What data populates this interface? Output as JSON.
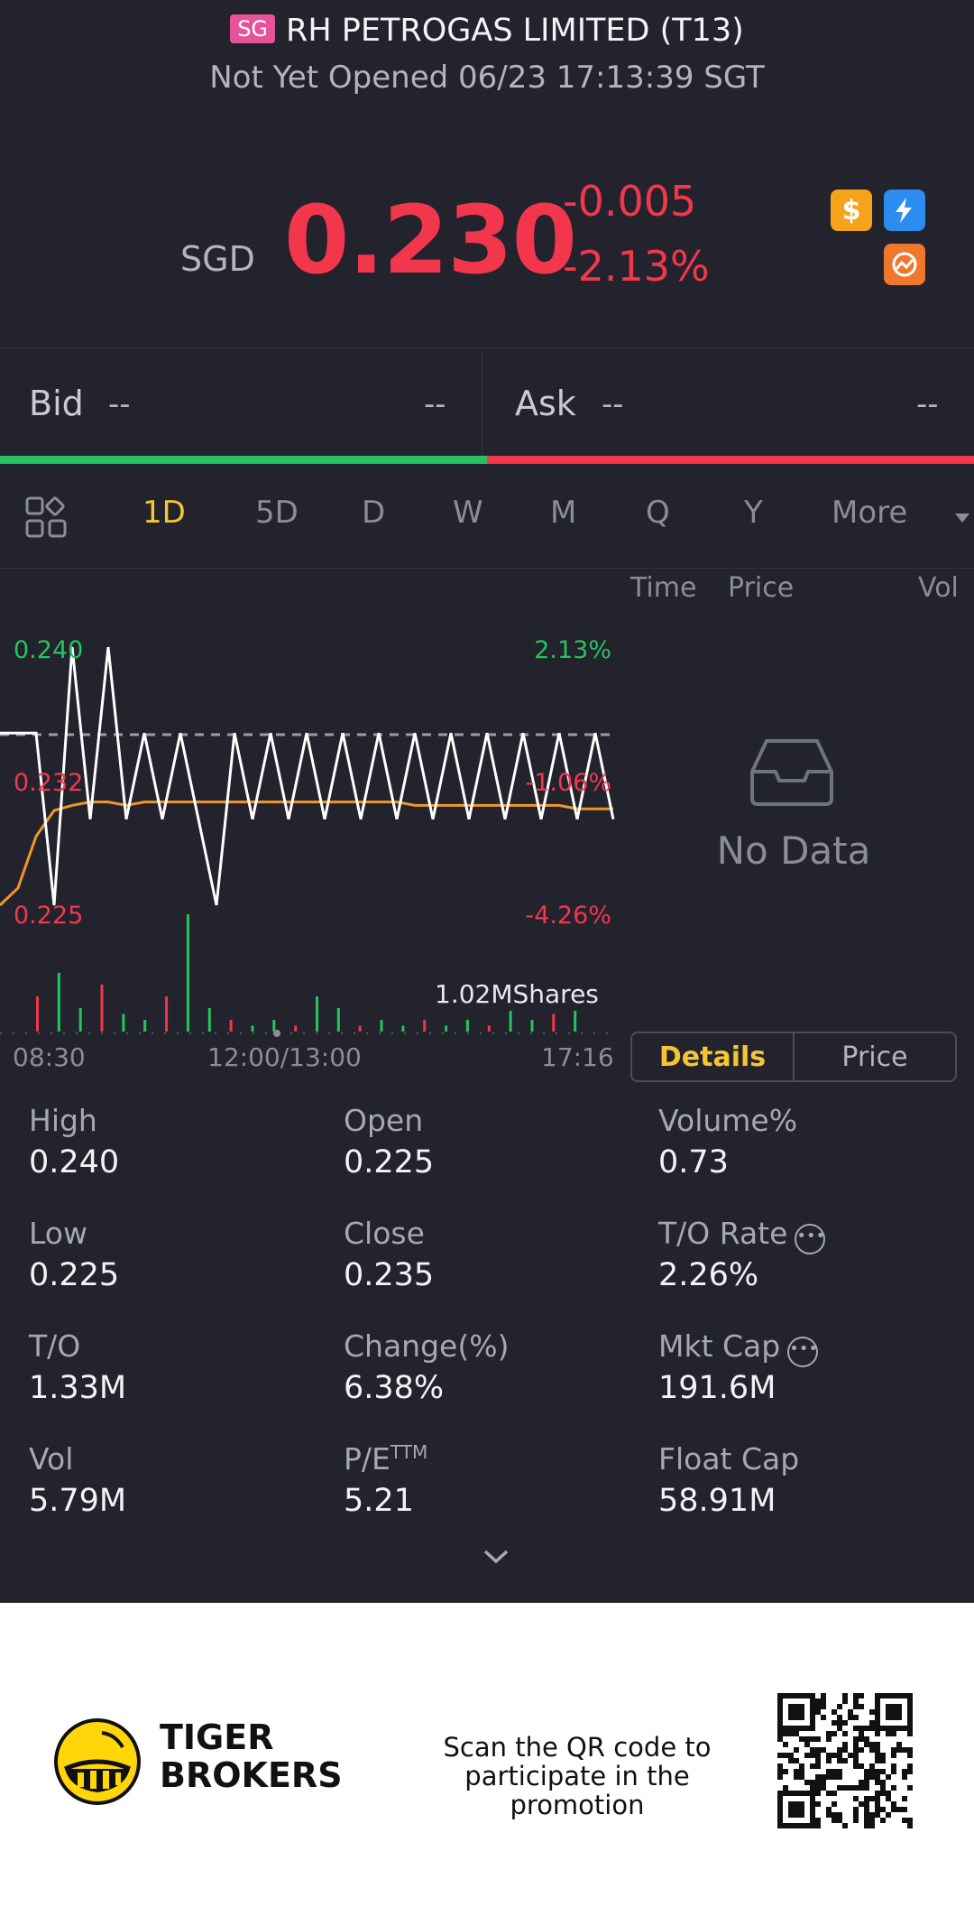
{
  "header": {
    "market_badge": "SG",
    "title": "RH PETROGAS LIMITED (T13)",
    "status": "Not Yet Opened 06/23 17:13:39 SGT",
    "currency": "SGD",
    "price": "0.230",
    "change": "-0.005",
    "change_pct": "-2.13%",
    "icons": [
      "dollar-icon",
      "flash-icon",
      "globe-icon"
    ]
  },
  "bid_ask": {
    "bid_label": "Bid",
    "bid_price": "--",
    "bid_size": "--",
    "ask_label": "Ask",
    "ask_price": "--",
    "ask_size": "--"
  },
  "tabs": [
    {
      "label": "1D",
      "active": true
    },
    {
      "label": "5D"
    },
    {
      "label": "D"
    },
    {
      "label": "W"
    },
    {
      "label": "M"
    },
    {
      "label": "Q"
    },
    {
      "label": "Y"
    },
    {
      "label": "More"
    }
  ],
  "chart_labels": {
    "y_high": "0.240",
    "y_mid": "0.232",
    "y_low": "0.225",
    "pct_high": "2.13%",
    "pct_mid": "-1.06%",
    "pct_low": "-4.26%",
    "volume_tag": "1.02MShares",
    "t_start": "08:30",
    "t_mid": "12:00/13:00",
    "t_end": "17:16"
  },
  "chart_data": {
    "type": "line",
    "x_labels": [
      "08:30",
      "12:00/13:00",
      "17:16"
    ],
    "ylim": [
      0.225,
      0.24
    ],
    "prev_close": 0.235,
    "series": [
      {
        "values": [
          0.235,
          0.235,
          0.235,
          0.225,
          0.24,
          0.23,
          0.24,
          0.23,
          0.235,
          0.23,
          0.235,
          0.23,
          0.225,
          0.235,
          0.23,
          0.235,
          0.23,
          0.235,
          0.23,
          0.235,
          0.23,
          0.235,
          0.23,
          0.235,
          0.23,
          0.235,
          0.23,
          0.235,
          0.23,
          0.235,
          0.23,
          0.235,
          0.23,
          0.235,
          0.23
        ]
      },
      {
        "values": [
          0.225,
          0.226,
          0.229,
          0.2305,
          0.2308,
          0.231,
          0.231,
          0.2308,
          0.231,
          0.231,
          0.231,
          0.231,
          0.231,
          0.231,
          0.231,
          0.231,
          0.231,
          0.231,
          0.231,
          0.231,
          0.231,
          0.231,
          0.231,
          0.2308,
          0.2308,
          0.2308,
          0.2308,
          0.2308,
          0.2308,
          0.2308,
          0.2308,
          0.2308,
          0.2306,
          0.2306,
          0.2306
        ]
      }
    ],
    "volume": [
      0.3,
      0.5,
      0.2,
      0.4,
      0.15,
      0.1,
      0.3,
      1.0,
      0.2,
      0.1,
      0.05,
      0.1,
      0.05,
      0.3,
      0.2,
      0.05,
      0.1,
      0.05,
      0.1,
      0.05,
      0.1,
      0.05,
      0.2,
      0.1,
      0.15,
      0.2
    ]
  },
  "ticks": {
    "col_time": "Time",
    "col_price": "Price",
    "col_vol": "Vol",
    "empty": "No Data"
  },
  "segment": {
    "details": "Details",
    "price": "Price"
  },
  "stats": [
    {
      "label": "High",
      "value": "0.240"
    },
    {
      "label": "Open",
      "value": "0.225"
    },
    {
      "label": "Volume%",
      "value": "0.73"
    },
    {
      "label": "Low",
      "value": "0.225"
    },
    {
      "label": "Close",
      "value": "0.235"
    },
    {
      "label": "T/O Rate",
      "value": "2.26%"
    },
    {
      "label": "T/O",
      "value": "1.33M"
    },
    {
      "label": "Change(%)",
      "value": "6.38%"
    },
    {
      "label": "Mkt Cap",
      "value": "191.6M"
    },
    {
      "label": "Vol",
      "value": "5.79M"
    },
    {
      "label": "P/E",
      "value": "5.21"
    },
    {
      "label": "Float Cap",
      "value": "58.91M"
    }
  ],
  "pe_sup": "TTM",
  "footer": {
    "brand_line1": "TIGER",
    "brand_line2": "BROKERS",
    "promo_line1": "Scan the QR code to",
    "promo_line2": "participate in the promotion"
  },
  "colors": {
    "up": "#25c45e",
    "down": "#f2374d",
    "accent": "#f5c533",
    "background": "#22232c"
  }
}
